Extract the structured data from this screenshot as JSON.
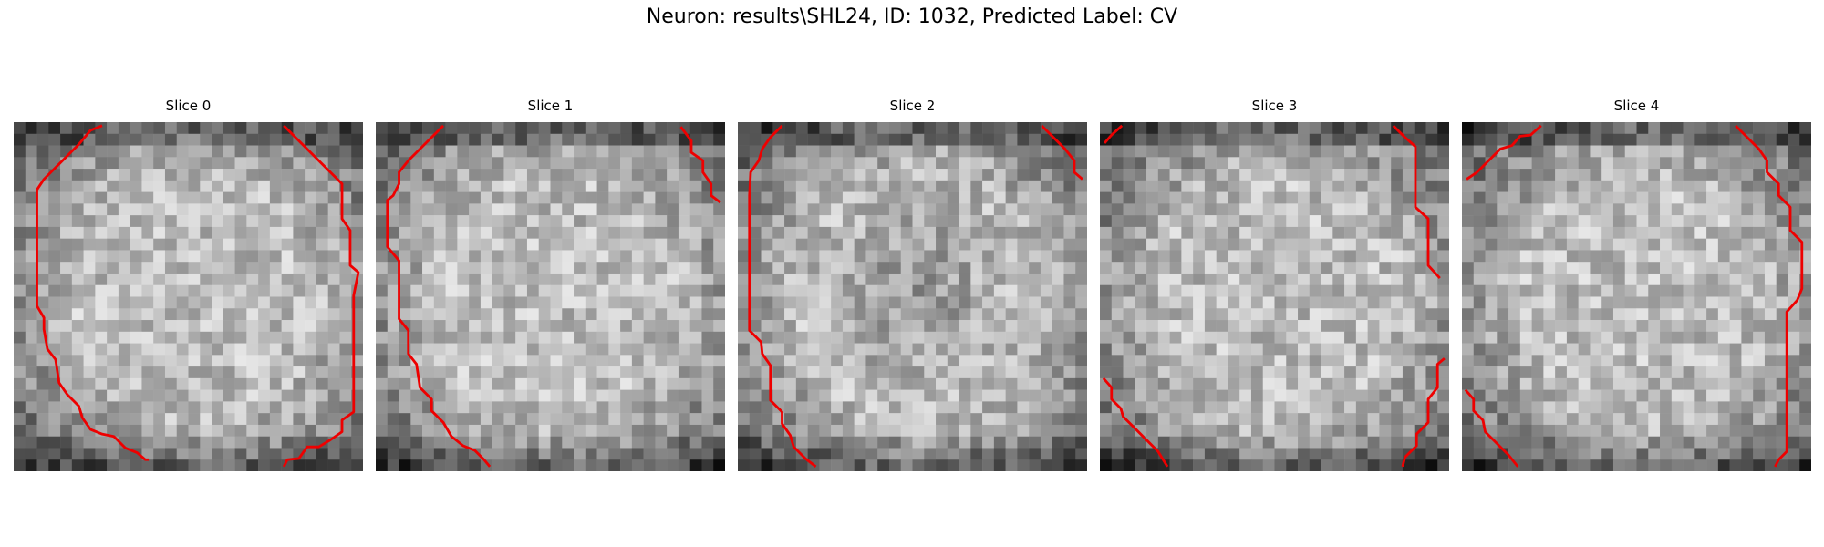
{
  "figure": {
    "title": "Neuron: results\\SHL24, ID: 1032, Predicted Label: CV"
  },
  "panels": [
    {
      "title": "Slice 0",
      "contour_color": "#ee0000"
    },
    {
      "title": "Slice 1",
      "contour_color": "#ee0000"
    },
    {
      "title": "Slice 2",
      "contour_color": "#ee0000"
    },
    {
      "title": "Slice 3",
      "contour_color": "#ee0000"
    },
    {
      "title": "Slice 4",
      "contour_color": "#ee0000"
    }
  ]
}
